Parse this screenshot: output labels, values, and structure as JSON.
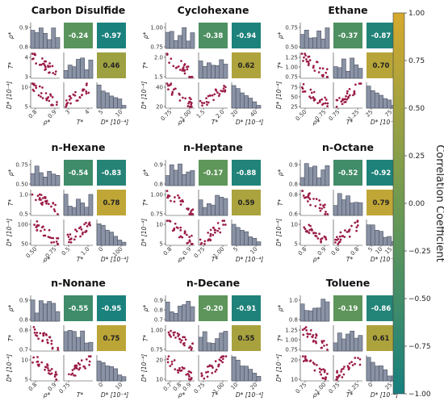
{
  "chart_data": {
    "type": "pairplot-grid",
    "variables": [
      "ρ*",
      "T*",
      "D* [10⁻⁴]"
    ],
    "matrix_axis_labels": {
      "y": [
        "ρ*",
        "T*",
        "D* [10⁻⁴]"
      ],
      "x": [
        "ρ*",
        "T*",
        "D* [10⁻⁴]"
      ]
    },
    "colorbar": {
      "label": "Correlation Coefficient",
      "range": [
        -1.0,
        1.0
      ],
      "ticks": [
        "1.00",
        "0.75",
        "0.50",
        "0.25",
        "0.00",
        "−0.25",
        "−0.50",
        "−0.75",
        "−1.00"
      ],
      "color_low": "#17807e",
      "color_mid": "#6e9a52",
      "color_high": "#d6a92e"
    },
    "marker_color": "#9b1c46",
    "hist_color": "#8a93a5",
    "panels": [
      {
        "title": "Carbon Disulfide",
        "corr": [
          {
            "pair": "ρ*–T*",
            "value": "-0.24"
          },
          {
            "pair": "ρ*–D*",
            "value": "-0.97"
          },
          {
            "pair": "T*–D*",
            "value": "0.46"
          }
        ],
        "rho_yticks": [
          "0.9",
          "0.8"
        ],
        "t_yticks": [
          "4",
          "3"
        ],
        "d_yticks": [
          "10",
          "5"
        ],
        "rho_xticks": [
          "0.8",
          "0.9"
        ],
        "t_xticks": [
          "3",
          "4"
        ],
        "d_xticks": [
          "5",
          "10"
        ]
      },
      {
        "title": "Cyclohexane",
        "corr": [
          {
            "pair": "ρ*–T*",
            "value": "-0.38"
          },
          {
            "pair": "ρ*–D*",
            "value": "-0.94"
          },
          {
            "pair": "T*–D*",
            "value": "0.62"
          }
        ],
        "rho_yticks": [
          "1.00",
          "0.75"
        ],
        "t_yticks": [
          "2.0",
          "1.5"
        ],
        "d_yticks": [
          "40",
          "20"
        ],
        "rho_xticks": [
          "0.75",
          "1.00"
        ],
        "t_xticks": [
          "1.5",
          "2.0"
        ],
        "d_xticks": [
          "20",
          "40"
        ]
      },
      {
        "title": "Ethane",
        "corr": [
          {
            "pair": "ρ*–T*",
            "value": "-0.37"
          },
          {
            "pair": "ρ*–D*",
            "value": "-0.87"
          },
          {
            "pair": "T*–D*",
            "value": "0.70"
          }
        ],
        "rho_yticks": [
          "0.75",
          "0.50"
        ],
        "t_yticks": [
          "1.25",
          "1.00",
          "0.75"
        ],
        "d_yticks": [
          "75",
          "50",
          "25"
        ],
        "rho_xticks": [
          "0.50",
          "0.75"
        ],
        "t_xticks": [
          "0.75",
          "1.25"
        ],
        "d_xticks": [
          "25",
          "75"
        ]
      },
      {
        "title": "n-Hexane",
        "corr": [
          {
            "pair": "ρ*–T*",
            "value": "-0.54"
          },
          {
            "pair": "ρ*–D*",
            "value": "-0.83"
          },
          {
            "pair": "T*–D*",
            "value": "0.78"
          }
        ],
        "rho_yticks": [
          "0.75",
          "0.50"
        ],
        "t_yticks": [
          "1.0",
          "0.5"
        ],
        "d_yticks": [
          "100",
          "50"
        ],
        "rho_xticks": [
          "0.50",
          "0.75"
        ],
        "t_xticks": [
          "0.5",
          "1.0"
        ],
        "d_xticks": [
          "0",
          "100"
        ]
      },
      {
        "title": "n-Heptane",
        "corr": [
          {
            "pair": "ρ*–T*",
            "value": "-0.17"
          },
          {
            "pair": "ρ*–D*",
            "value": "-0.88"
          },
          {
            "pair": "T*–D*",
            "value": "0.59"
          }
        ],
        "rho_yticks": [
          "0.9",
          "0.8"
        ],
        "t_yticks": [
          "1.00",
          "0.75"
        ],
        "d_yticks": [
          "10",
          "5"
        ],
        "rho_xticks": [
          "0.8",
          "0.9"
        ],
        "t_xticks": [
          "0.75",
          "1.00"
        ],
        "d_xticks": [
          "5",
          "10"
        ]
      },
      {
        "title": "n-Octane",
        "corr": [
          {
            "pair": "ρ*–T*",
            "value": "-0.52"
          },
          {
            "pair": "ρ*–D*",
            "value": "-0.92"
          },
          {
            "pair": "T*–D*",
            "value": "0.79"
          }
        ],
        "rho_yticks": [
          "0.9",
          "0.8"
        ],
        "t_yticks": [
          "0.8",
          "0.6"
        ],
        "d_yticks": [
          "10",
          "5"
        ],
        "rho_xticks": [
          "0.8",
          "0.9"
        ],
        "t_xticks": [
          "0.6",
          "0.8"
        ],
        "d_xticks": [
          "5",
          "10",
          "15"
        ]
      },
      {
        "title": "n-Nonane",
        "corr": [
          {
            "pair": "ρ*–T*",
            "value": "-0.55"
          },
          {
            "pair": "ρ*–D*",
            "value": "-0.95"
          },
          {
            "pair": "T*–D*",
            "value": "0.75"
          }
        ],
        "rho_yticks": [
          "0.9",
          "0.8"
        ],
        "t_yticks": [
          "0.8",
          "0.7"
        ],
        "d_yticks": [
          "10",
          "5"
        ],
        "rho_xticks": [
          "0.8",
          "0.9"
        ],
        "t_xticks": [
          "0.75"
        ],
        "d_xticks": [
          "0",
          "10"
        ]
      },
      {
        "title": "n-Decane",
        "corr": [
          {
            "pair": "ρ*–T*",
            "value": "-0.20"
          },
          {
            "pair": "ρ*–D*",
            "value": "-0.91"
          },
          {
            "pair": "T*–D*",
            "value": "0.55"
          }
        ],
        "rho_yticks": [
          "0.9",
          "0.8",
          "0.7"
        ],
        "t_yticks": [
          "1.00",
          "0.75"
        ],
        "d_yticks": [
          "20",
          "10"
        ],
        "rho_xticks": [
          "0.7",
          "0.8",
          "0.9"
        ],
        "t_xticks": [
          "0.75",
          "1.00"
        ],
        "d_xticks": [
          "10",
          "20"
        ]
      },
      {
        "title": "Toluene",
        "corr": [
          {
            "pair": "ρ*–T*",
            "value": "-0.19"
          },
          {
            "pair": "ρ*–D*",
            "value": "-0.86"
          },
          {
            "pair": "T*–D*",
            "value": "0.61"
          }
        ],
        "rho_yticks": [
          "1.0",
          "0.8"
        ],
        "t_yticks": [
          "1.25",
          "1.00",
          "0.75"
        ],
        "d_yticks": [
          "20",
          "10"
        ],
        "rho_xticks": [
          "0.75",
          "1.00"
        ],
        "t_xticks": [
          "0.75",
          "1.25"
        ],
        "d_xticks": [
          "0",
          "25"
        ]
      }
    ]
  }
}
